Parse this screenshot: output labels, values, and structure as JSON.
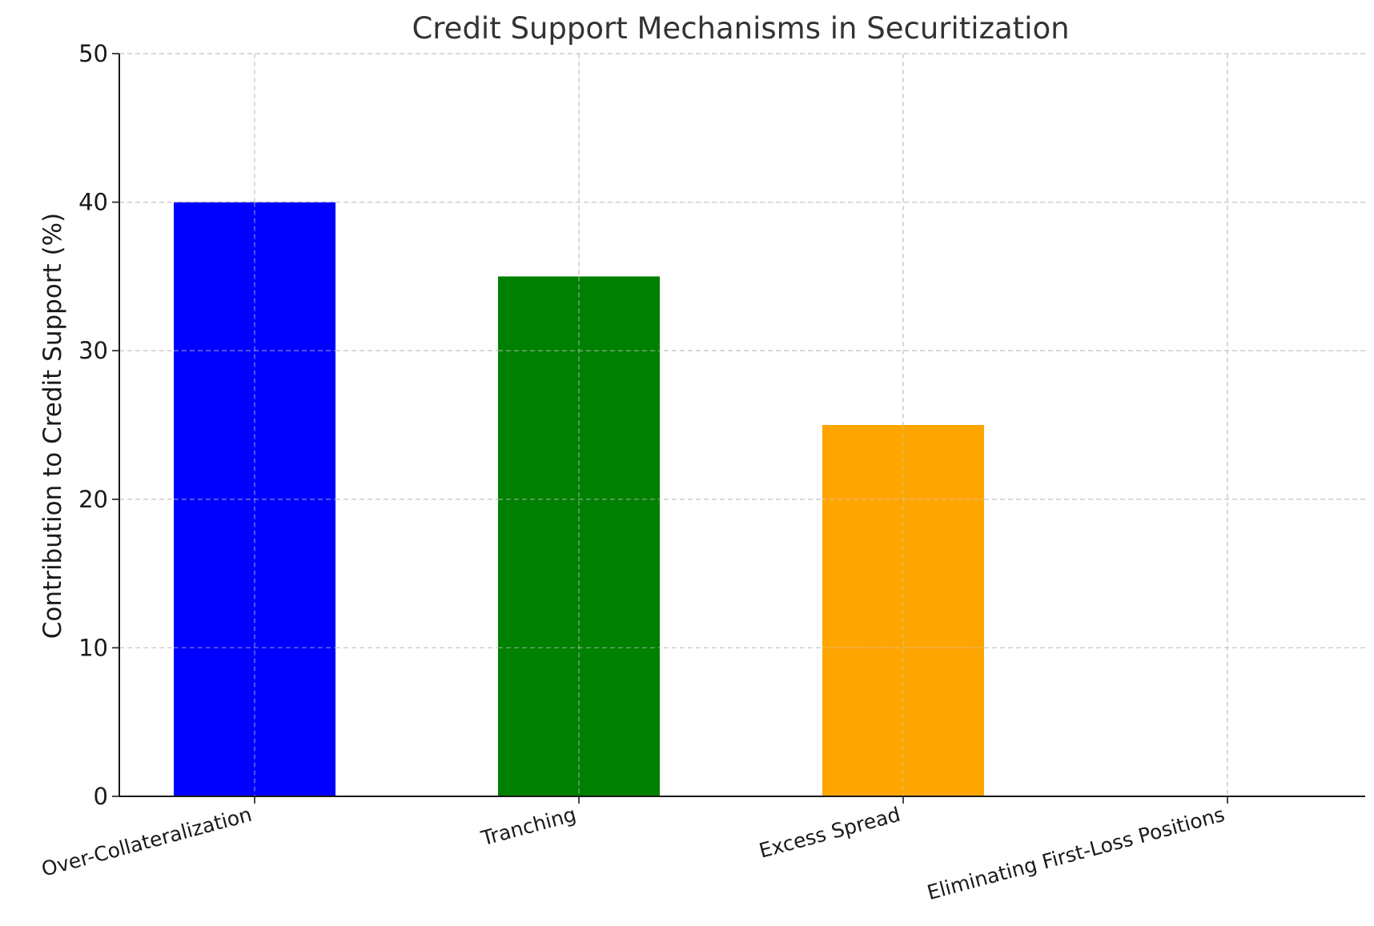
{
  "chart_data": {
    "type": "bar",
    "title": "Credit Support Mechanisms in Securitization",
    "xlabel": "",
    "ylabel": "Contribution to Credit Support (%)",
    "categories": [
      "Over-Collateralization",
      "Tranching",
      "Excess Spread",
      "Eliminating First-Loss Positions"
    ],
    "values": [
      40,
      35,
      25,
      0
    ],
    "colors": [
      "#0000ff",
      "#008000",
      "#ffa500",
      "#ff0000"
    ],
    "ylim": [
      0,
      50
    ],
    "yticks": [
      0,
      10,
      20,
      30,
      40,
      50
    ],
    "grid": true,
    "legend": "none"
  }
}
